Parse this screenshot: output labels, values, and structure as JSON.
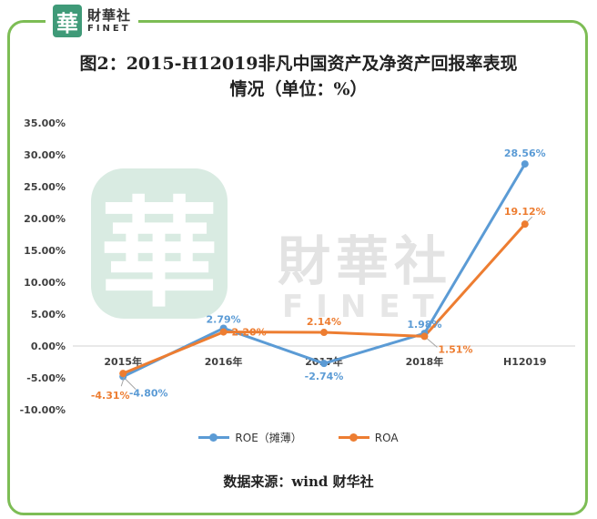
{
  "logo": {
    "mark": "華",
    "cn": "財華社",
    "en": "FINET"
  },
  "watermark": {
    "mark": "華",
    "cn": "財華社",
    "en": "FINET"
  },
  "title_line1": "图2：2015-H12019非凡中国资产及净资产回报率表现",
  "title_line2": "情况（单位：%）",
  "source": "数据来源：wind    财华社",
  "chart_data": {
    "type": "line",
    "categories": [
      "2015年",
      "2016年",
      "2017年",
      "2018年",
      "H12019"
    ],
    "yticks": [
      "35.00%",
      "30.00%",
      "25.00%",
      "20.00%",
      "15.00%",
      "10.00%",
      "5.00%",
      "0.00%",
      "-5.00%",
      "-10.00%"
    ],
    "ylim": [
      -10,
      35
    ],
    "grid": false,
    "legend_position": "bottom",
    "series": [
      {
        "name": "ROE（摊薄）",
        "color": "#5b9bd5",
        "values": [
          -4.8,
          2.79,
          -2.74,
          1.98,
          28.56
        ],
        "labels": [
          "-4.80%",
          "2.79%",
          "-2.74%",
          "1.98%",
          "28.56%"
        ]
      },
      {
        "name": "ROA",
        "color": "#ed7d31",
        "values": [
          -4.31,
          2.2,
          2.14,
          1.51,
          19.12
        ],
        "labels": [
          "-4.31%",
          "2.20%",
          "2.14%",
          "1.51%",
          "19.12%"
        ]
      }
    ]
  }
}
